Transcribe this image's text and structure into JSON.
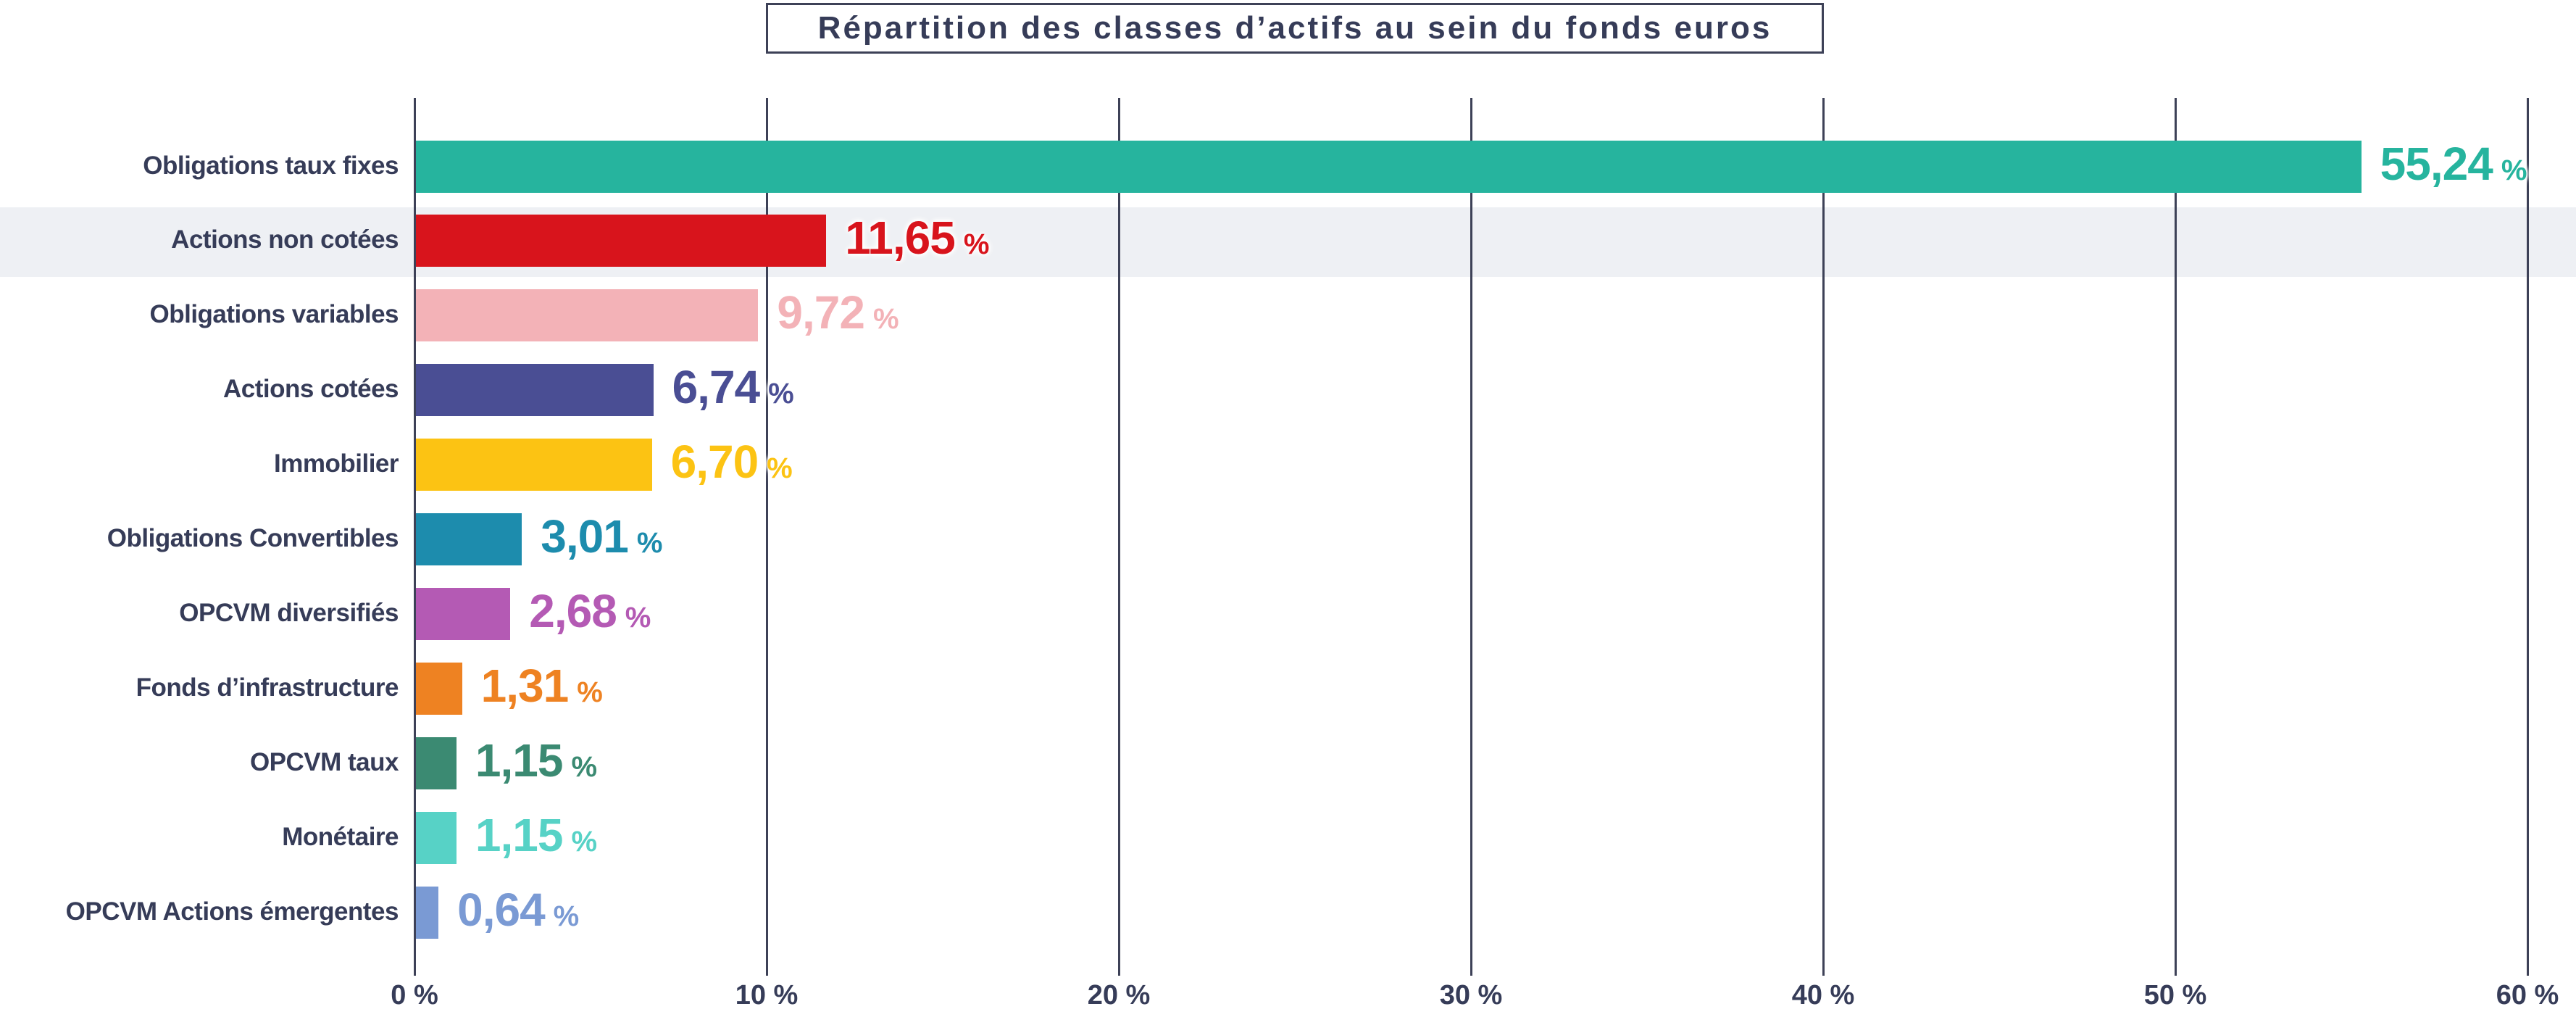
{
  "title": "Répartition des classes d’actifs au sein du fonds euros",
  "chart_data": {
    "type": "bar",
    "orientation": "horizontal",
    "title": "Répartition des classes d’actifs au sein du fonds euros",
    "categories": [
      "Obligations taux fixes",
      "Actions non cotées",
      "Obligations variables",
      "Actions cotées",
      "Immobilier",
      "Obligations Convertibles",
      "OPCVM diversifiés",
      "Fonds d’infrastructure",
      "OPCVM taux",
      "Monétaire",
      "OPCVM Actions émergentes"
    ],
    "values": [
      55.24,
      11.65,
      9.72,
      6.74,
      6.7,
      3.01,
      2.68,
      1.31,
      1.15,
      1.15,
      0.64
    ],
    "value_labels": [
      "55,24",
      "11,65",
      "9,72",
      "6,74",
      "6,70",
      "3,01",
      "2,68",
      "1,31",
      "1,15",
      "1,15",
      "0,64"
    ],
    "unit_suffix": "%",
    "bar_colors": [
      "#26b49e",
      "#d8141c",
      "#f3b2b7",
      "#4a4e94",
      "#fcc313",
      "#1d8cad",
      "#b45ab4",
      "#ee8222",
      "#3b8a72",
      "#57d2c6",
      "#7a9ad4"
    ],
    "xlim": [
      0,
      60
    ],
    "x_tick_labels": [
      "0 %",
      "10 %",
      "20 %",
      "30 %",
      "40 %",
      "50 %",
      "60 %"
    ],
    "x_tick_values": [
      0,
      10,
      20,
      30,
      40,
      50,
      60
    ],
    "grid": true,
    "highlighted_row_index": 1,
    "colors": {
      "text_navy": "#363c58",
      "grid_line": "#3d4157",
      "highlight_band": "#eef0f4",
      "background": "#ffffff"
    }
  }
}
